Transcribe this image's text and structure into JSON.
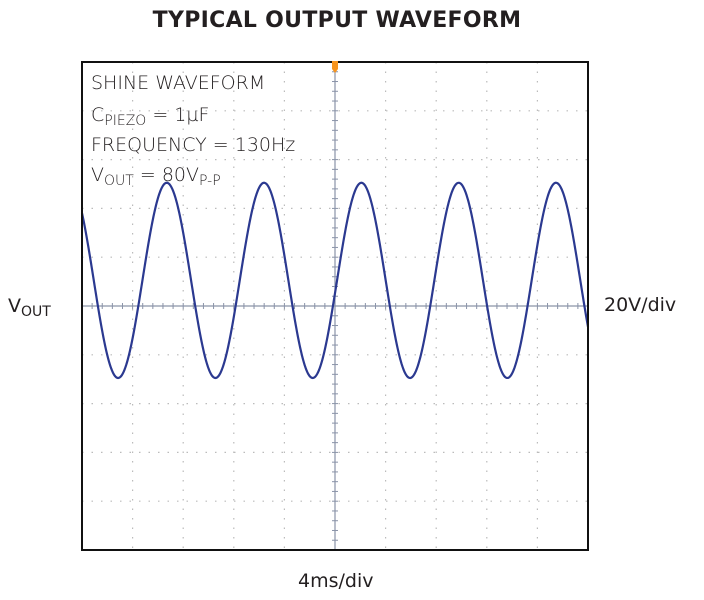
{
  "chart_data": {
    "type": "line",
    "title": "TYPICAL OUTPUT WAVEFORM",
    "annotations": {
      "line1": "SHINE WAVEFORM",
      "line2_main": "C",
      "line2_sub": "PIEZO",
      "line2_rest": " = 1µF",
      "line3": "FREQUENCY = 130Hz",
      "line4_main": "V",
      "line4_sub": "OUT",
      "line4_mid": " = 80V",
      "line4_sub2": "P-P"
    },
    "ylabel_main": "V",
    "ylabel_sub": "OUT",
    "y_scale": "20V/div",
    "x_scale": "4ms/div",
    "x_divisions": 10,
    "y_divisions": 10,
    "xlim_ms": [
      0,
      40
    ],
    "ylim_V": [
      -100,
      100
    ],
    "grid": true,
    "series": [
      {
        "waveform": "sine",
        "frequency_hz": 130,
        "peak_to_peak_V": 80,
        "offset_V": 10.5,
        "first_peak_ms": 6.7
      }
    ],
    "trace_color": "#2b3990",
    "trigger_marker_color": "#f7941d"
  }
}
